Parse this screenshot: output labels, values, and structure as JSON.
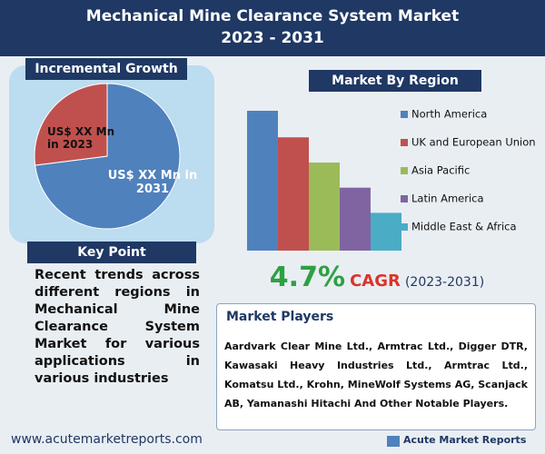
{
  "header": {
    "title": "Mechanical Mine Clearance System Market",
    "subtitle": "2023 - 2031"
  },
  "chart_data": [
    {
      "type": "pie",
      "title": "Incremental Growth",
      "categories": [
        "US$ XX Mn in 2023",
        "US$ XX Mn in 2031"
      ],
      "values": [
        27,
        73
      ],
      "colors": [
        "#c0504d",
        "#4f81bd"
      ]
    },
    {
      "type": "bar",
      "title": "Market By Region",
      "categories": [
        "North America",
        "UK and European Union",
        "Asia Pacific",
        "Latin America",
        "Middle East & Africa"
      ],
      "values": [
        100,
        81,
        63,
        45,
        27
      ],
      "ylim": [
        0,
        100
      ],
      "colors": [
        "#4f81bd",
        "#c0504d",
        "#9bbb59",
        "#8064a2",
        "#4bacc6"
      ]
    }
  ],
  "cagr": {
    "value": "4.7%",
    "label": "CAGR",
    "period": "(2023-2031)"
  },
  "key_point": {
    "title": "Key Point",
    "text": "Recent trends across different regions in Mechanical Mine Clearance System Market for various applications in various industries"
  },
  "market_players": {
    "title": "Market Players",
    "text": "Aardvark Clear Mine Ltd., Armtrac Ltd., Digger DTR, Kawasaki Heavy Industries Ltd., Armtrac Ltd., Komatsu Ltd., Krohn, MineWolf Systems AG, Scanjack AB, Yamanashi Hitachi And Other Notable Players."
  },
  "footer": {
    "url": "www.acutemarketreports.com",
    "logo": "Acute Market Reports"
  }
}
